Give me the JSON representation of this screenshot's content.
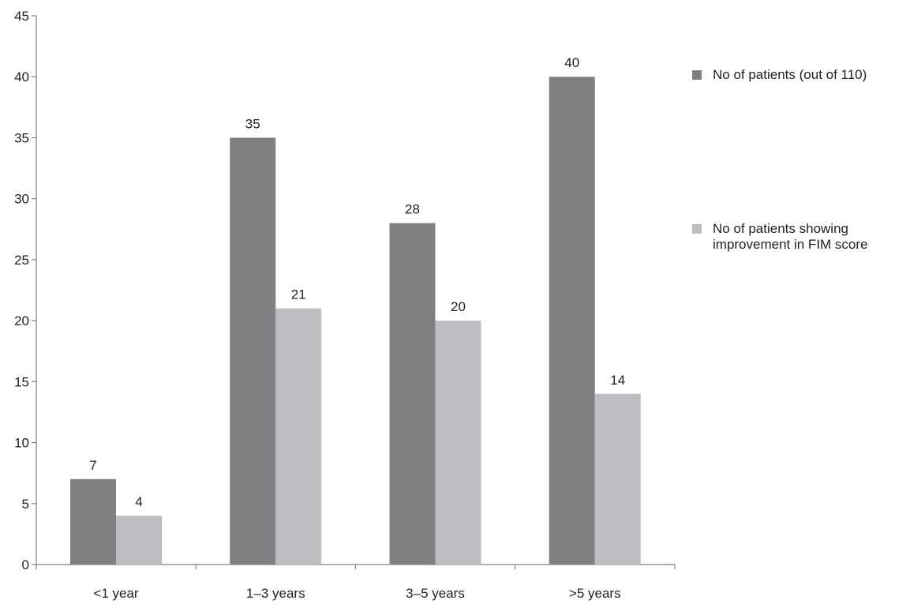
{
  "chart_data": {
    "type": "bar",
    "title": "",
    "xlabel": "",
    "ylabel": "",
    "categories": [
      "<1 year",
      "1–3 years",
      "3–5 years",
      ">5 years"
    ],
    "series": [
      {
        "name": "No of patients (out of 110)",
        "values": [
          7,
          35,
          28,
          40
        ],
        "color": "#808083"
      },
      {
        "name": "No of patients showing improvement in FIM score",
        "values": [
          4,
          21,
          20,
          14
        ],
        "color": "#bdbec1"
      }
    ],
    "ylim": [
      0,
      45
    ],
    "yticks": [
      0,
      5,
      10,
      15,
      20,
      25,
      30,
      35,
      40,
      45
    ],
    "grid": false,
    "legend_position": "right",
    "data_labels": true
  }
}
